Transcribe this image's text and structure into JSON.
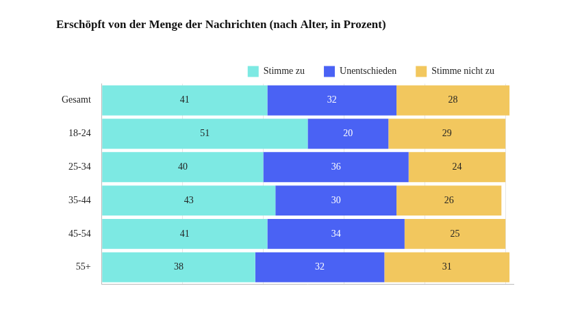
{
  "chart_data": {
    "type": "bar",
    "title": "Erschöpft von der Menge der Nachrichten (nach Alter, in Prozent)",
    "orientation": "horizontal",
    "stacked": true,
    "data_labels": true,
    "legend": "top",
    "grid": true,
    "tick_labels": "y",
    "categories": [
      "Gesamt",
      "18-24",
      "25-34",
      "35-44",
      "45-54",
      "55+"
    ],
    "series": [
      {
        "name": "Stimme zu",
        "color": "#7de9e3",
        "values": [
          41,
          51,
          40,
          43,
          41,
          38
        ]
      },
      {
        "name": "Unentschieden",
        "color": "#4a62f4",
        "values": [
          32,
          20,
          36,
          30,
          34,
          32
        ]
      },
      {
        "name": "Stimme nicht zu",
        "color": "#f2c75e",
        "values": [
          28,
          29,
          24,
          26,
          25,
          31
        ]
      }
    ],
    "xlim": [
      0,
      102
    ],
    "xticks": [
      0,
      20,
      40,
      60,
      80,
      100
    ]
  }
}
